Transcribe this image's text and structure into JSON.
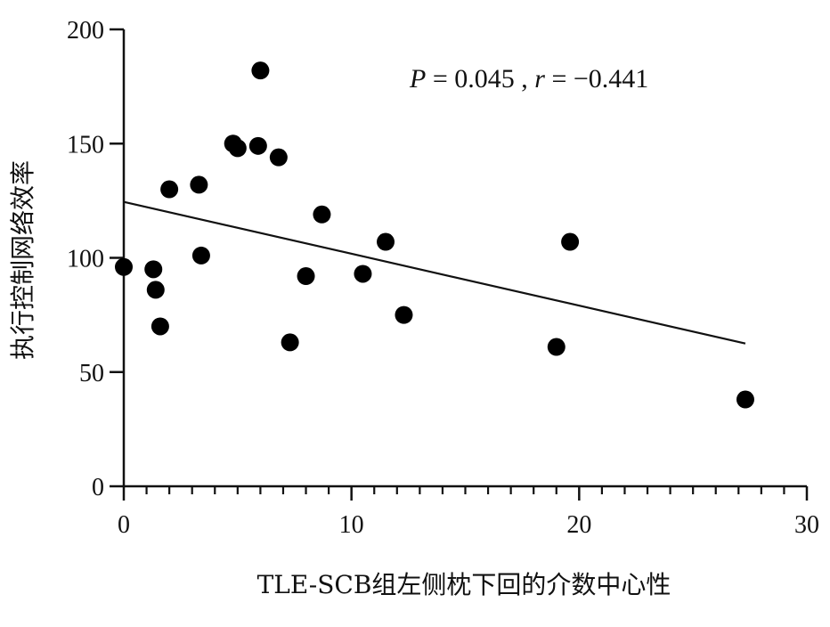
{
  "chart_data": {
    "type": "scatter",
    "xlabel": "TLE-SCB组左侧枕下回的介数中心性",
    "ylabel": "执行控制网络效率",
    "xlim": [
      0,
      30
    ],
    "ylim": [
      0,
      200
    ],
    "xticks": [
      0,
      10,
      20,
      30
    ],
    "yticks": [
      0,
      50,
      100,
      150,
      200
    ],
    "x_minor_step": 1,
    "annotation": {
      "p_symbol": "P",
      "p_text": " = 0.045 , ",
      "r_symbol": "r",
      "r_text": " = −0.441"
    },
    "series": [
      {
        "points": [
          {
            "x": 0.0,
            "y": 96
          },
          {
            "x": 1.3,
            "y": 95
          },
          {
            "x": 1.4,
            "y": 86
          },
          {
            "x": 1.6,
            "y": 70
          },
          {
            "x": 2.0,
            "y": 130
          },
          {
            "x": 3.3,
            "y": 132
          },
          {
            "x": 3.4,
            "y": 101
          },
          {
            "x": 4.8,
            "y": 150
          },
          {
            "x": 5.0,
            "y": 148
          },
          {
            "x": 5.9,
            "y": 149
          },
          {
            "x": 6.0,
            "y": 182
          },
          {
            "x": 6.8,
            "y": 144
          },
          {
            "x": 7.3,
            "y": 63
          },
          {
            "x": 8.0,
            "y": 92
          },
          {
            "x": 8.7,
            "y": 119
          },
          {
            "x": 10.5,
            "y": 93
          },
          {
            "x": 11.5,
            "y": 107
          },
          {
            "x": 12.3,
            "y": 75
          },
          {
            "x": 19.0,
            "y": 61
          },
          {
            "x": 19.6,
            "y": 107
          },
          {
            "x": 27.3,
            "y": 38
          }
        ]
      }
    ],
    "regression_line": {
      "x": [
        0,
        27.3
      ],
      "y": [
        124.5,
        62.5
      ]
    }
  }
}
